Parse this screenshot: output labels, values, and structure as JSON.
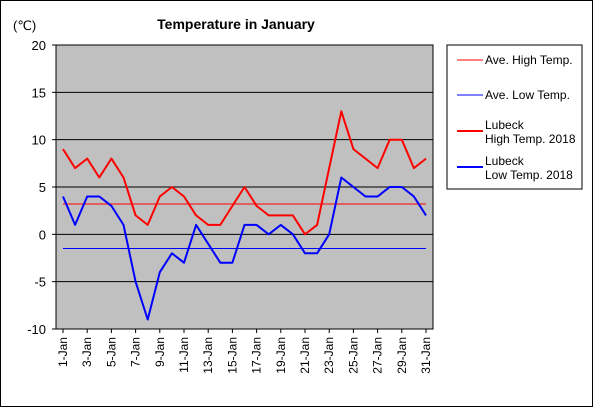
{
  "chart_data": {
    "type": "line",
    "title": "Temperature in January",
    "unit_label": "(℃)",
    "ylim": [
      -10,
      20
    ],
    "yticks": [
      -10,
      -5,
      0,
      5,
      10,
      15,
      20
    ],
    "x": [
      "1-Jan",
      "2-Jan",
      "3-Jan",
      "4-Jan",
      "5-Jan",
      "6-Jan",
      "7-Jan",
      "8-Jan",
      "9-Jan",
      "10-Jan",
      "11-Jan",
      "12-Jan",
      "13-Jan",
      "14-Jan",
      "15-Jan",
      "16-Jan",
      "17-Jan",
      "18-Jan",
      "19-Jan",
      "20-Jan",
      "21-Jan",
      "22-Jan",
      "23-Jan",
      "24-Jan",
      "25-Jan",
      "26-Jan",
      "27-Jan",
      "28-Jan",
      "29-Jan",
      "30-Jan",
      "31-Jan"
    ],
    "xtick_labels": [
      "1-Jan",
      "3-Jan",
      "5-Jan",
      "7-Jan",
      "9-Jan",
      "11-Jan",
      "13-Jan",
      "15-Jan",
      "17-Jan",
      "19-Jan",
      "21-Jan",
      "23-Jan",
      "25-Jan",
      "27-Jan",
      "29-Jan",
      "31-Jan"
    ],
    "plot_background": "#c0c0c0",
    "grid": true,
    "legend_position": "right",
    "series": [
      {
        "name": "Ave. High Temp.",
        "color": "#ff0000",
        "style": "thin",
        "values": [
          3.2,
          3.2,
          3.2,
          3.2,
          3.2,
          3.2,
          3.2,
          3.2,
          3.2,
          3.2,
          3.2,
          3.2,
          3.2,
          3.2,
          3.2,
          3.2,
          3.2,
          3.2,
          3.2,
          3.2,
          3.2,
          3.2,
          3.2,
          3.2,
          3.2,
          3.2,
          3.2,
          3.2,
          3.2,
          3.2,
          3.2
        ]
      },
      {
        "name": "Ave. Low Temp.",
        "color": "#0000ff",
        "style": "thin",
        "values": [
          -1.5,
          -1.5,
          -1.5,
          -1.5,
          -1.5,
          -1.5,
          -1.5,
          -1.5,
          -1.5,
          -1.5,
          -1.5,
          -1.5,
          -1.5,
          -1.5,
          -1.5,
          -1.5,
          -1.5,
          -1.5,
          -1.5,
          -1.5,
          -1.5,
          -1.5,
          -1.5,
          -1.5,
          -1.5,
          -1.5,
          -1.5,
          -1.5,
          -1.5,
          -1.5,
          -1.5
        ]
      },
      {
        "name": "Lubeck High Temp. 2018",
        "legend_lines": [
          "Lubeck",
          "High Temp. 2018"
        ],
        "color": "#ff0000",
        "style": "thick",
        "values": [
          9,
          7,
          8,
          6,
          8,
          6,
          2,
          1,
          4,
          5,
          4,
          2,
          1,
          1,
          3,
          5,
          3,
          2,
          2,
          2,
          0,
          1,
          7,
          13,
          9,
          8,
          7,
          10,
          10,
          7,
          8
        ]
      },
      {
        "name": "Lubeck Low Temp. 2018",
        "legend_lines": [
          "Lubeck",
          "Low Temp. 2018"
        ],
        "color": "#0000ff",
        "style": "thick",
        "values": [
          4,
          1,
          4,
          4,
          3,
          1,
          -5,
          -9,
          -4,
          -2,
          -3,
          1,
          -1,
          -3,
          -3,
          1,
          1,
          0,
          1,
          0,
          -2,
          -2,
          0,
          6,
          5,
          4,
          4,
          5,
          5,
          4,
          2
        ]
      }
    ]
  }
}
